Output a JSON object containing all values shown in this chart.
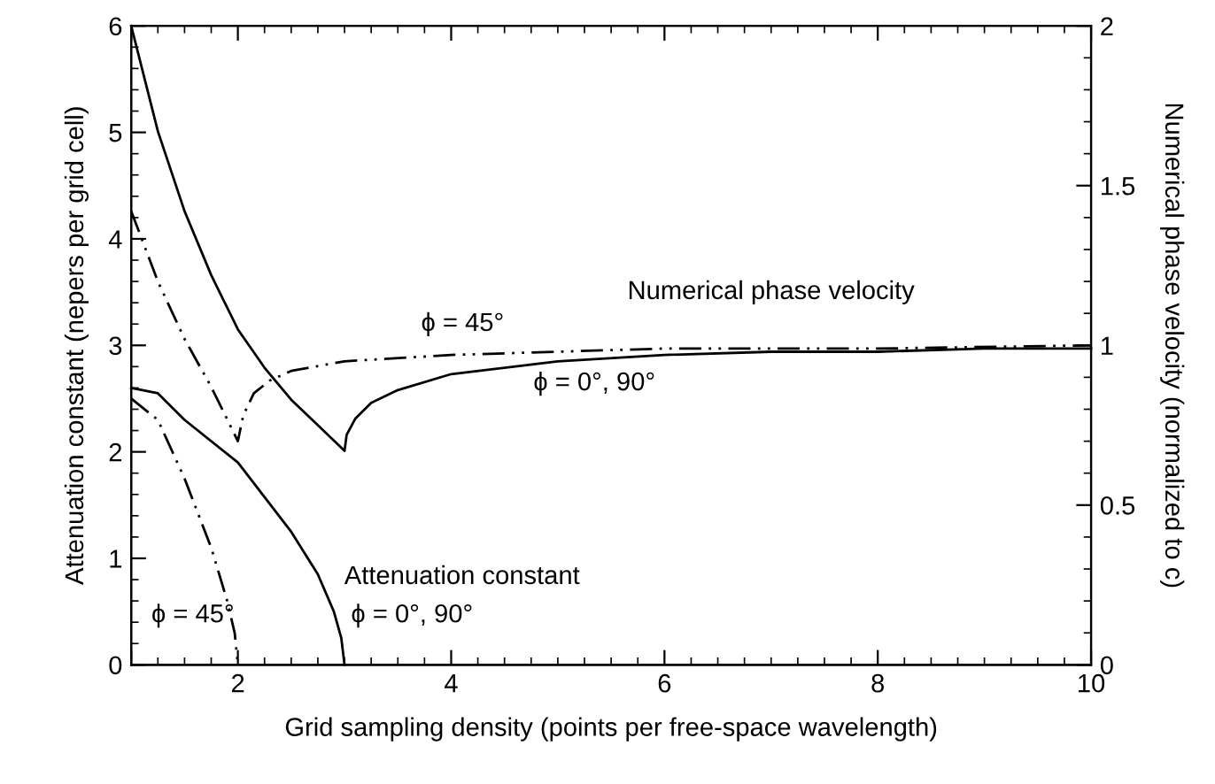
{
  "chart_data": {
    "type": "line",
    "xlabel": "Grid sampling density (points per free-space wavelength)",
    "ylabel": "Attenuation constant (nepers per grid cell)",
    "y2label": "Numerical phase velocity (normalized to c)",
    "xlim": [
      1,
      10
    ],
    "xticks": [
      {
        "value": 1,
        "label": null
      },
      2,
      4,
      6,
      8,
      10
    ],
    "ylim": [
      0,
      6
    ],
    "yticks": [
      0,
      1,
      2,
      3,
      4,
      5,
      6
    ],
    "y2lim": [
      0,
      2
    ],
    "y2ticks": [
      0,
      0.5,
      1,
      1.5,
      2
    ],
    "grid": false,
    "legend": false,
    "marker": "none",
    "series": [
      {
        "color": "#000000",
        "line_style": "solid",
        "axis": "y2",
        "x": [
          1,
          1.25,
          1.5,
          1.75,
          2,
          2.25,
          2.5,
          2.75,
          3,
          3.02,
          3.1,
          3.25,
          3.5,
          4,
          4.5,
          5,
          6,
          7,
          8,
          9,
          10
        ],
        "values": [
          2.0,
          1.67,
          1.42,
          1.22,
          1.05,
          0.93,
          0.83,
          0.75,
          0.67,
          0.72,
          0.77,
          0.82,
          0.86,
          0.91,
          0.93,
          0.95,
          0.97,
          0.98,
          0.98,
          0.99,
          0.99
        ]
      },
      {
        "color": "#000000",
        "line_style": "dashed",
        "axis": "y2",
        "x": [
          1,
          1.25,
          1.5,
          1.75,
          2,
          2.05,
          2.15,
          2.3,
          2.5,
          3,
          4,
          5,
          6,
          8,
          10
        ],
        "values": [
          1.42,
          1.2,
          1.02,
          0.87,
          0.7,
          0.78,
          0.85,
          0.89,
          0.92,
          0.95,
          0.97,
          0.98,
          0.99,
          0.99,
          1.0
        ]
      },
      {
        "color": "#000000",
        "line_style": "solid",
        "x": [
          1,
          1.25,
          1.5,
          2,
          2.5,
          2.75,
          2.9,
          2.97,
          3
        ],
        "values": [
          2.6,
          2.55,
          2.3,
          1.9,
          1.25,
          0.85,
          0.5,
          0.25,
          0
        ]
      },
      {
        "color": "#000000",
        "line_style": "dashed",
        "x": [
          1,
          1.25,
          1.5,
          1.75,
          1.9,
          1.97,
          2
        ],
        "values": [
          2.5,
          2.3,
          1.75,
          1.1,
          0.6,
          0.3,
          0
        ]
      }
    ],
    "annotations": [
      "Numerical phase velocity",
      "ϕ = 45°",
      "ϕ = 0°, 90°",
      "Attenuation constant",
      "ϕ = 0°, 90°",
      "ϕ = 45°"
    ]
  }
}
